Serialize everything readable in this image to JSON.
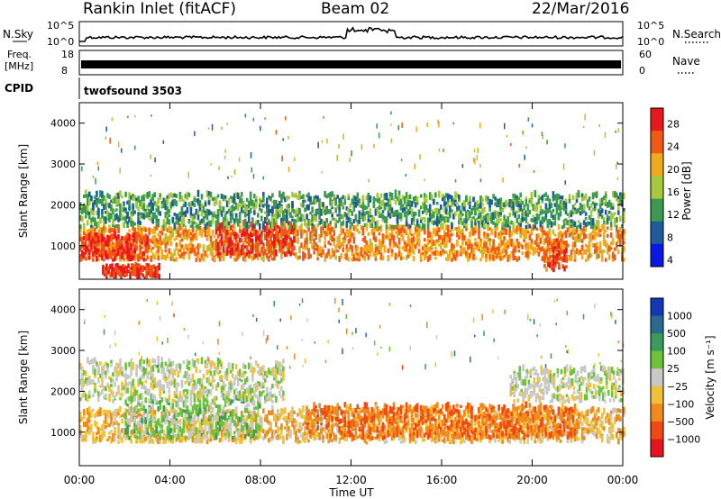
{
  "header": {
    "station": "Rankin Inlet (fitACF)",
    "beam": "Beam 02",
    "date": "22/Mar/2016"
  },
  "panels": {
    "nsky_label": "N.Sky",
    "nsearch_label": "N.Search",
    "freq_label": "Freq.",
    "freq_unit": "[MHz]",
    "nave_label": "Nave",
    "cpid_label": "CPID",
    "cpid_value": "twofsound 3503",
    "noise_left_ticks": [
      "10^5",
      "10^0"
    ],
    "noise_right_ticks": [
      "10^5",
      "10^0"
    ],
    "freq_left_ticks": [
      "18",
      "8"
    ],
    "freq_right_ticks": [
      "60",
      "0"
    ]
  },
  "colorbars": {
    "power": {
      "label": "Power [dB]",
      "ticks": [
        "28",
        "24",
        "20",
        "16",
        "12",
        "8",
        "4"
      ],
      "colors": [
        "#e8181c",
        "#f05a14",
        "#f0aa1c",
        "#a8c83c",
        "#3c9a50",
        "#1f5a9a",
        "#0a18e6"
      ]
    },
    "velocity": {
      "label": "Velocity [m s⁻¹]",
      "ticks": [
        "1000",
        "500",
        "100",
        "25",
        "−25",
        "−100",
        "−500",
        "−1000"
      ],
      "colors": [
        "#1438b4",
        "#2a6a8e",
        "#3c9a5a",
        "#6cc23a",
        "#c8c8c8",
        "#f0c23a",
        "#f08a1c",
        "#f04a14",
        "#e8141c"
      ]
    }
  },
  "axes": {
    "ylabel": "Slant Range [km]",
    "xlabel": "Time UT",
    "xticks": [
      "00:00",
      "04:00",
      "08:00",
      "12:00",
      "16:00",
      "20:00",
      "00:00"
    ],
    "yticks": [
      "1000",
      "2000",
      "3000",
      "4000"
    ]
  },
  "chart_data": [
    {
      "type": "heatmap",
      "title": "Power",
      "xlabel": "Time UT",
      "ylabel": "Slant Range [km]",
      "xlim_hours": [
        0,
        24
      ],
      "ylim_km": [
        180,
        4500
      ],
      "colorbar_range_db": [
        0,
        30
      ],
      "bands": [
        {
          "t_start": 0.0,
          "t_end": 24.0,
          "r_center": 1000,
          "r_width": 400,
          "power_db": 22
        },
        {
          "t_start": 0.0,
          "t_end": 3.0,
          "r_center": 900,
          "r_width": 300,
          "power_db": 28
        },
        {
          "t_start": 6.0,
          "t_end": 9.5,
          "r_center": 1100,
          "r_width": 400,
          "power_db": 28
        },
        {
          "t_start": 20.5,
          "t_end": 21.5,
          "r_center": 700,
          "r_width": 350,
          "power_db": 26
        },
        {
          "t_start": 0.0,
          "t_end": 24.0,
          "r_center": 1800,
          "r_width": 400,
          "power_db": 10
        },
        {
          "t_start": 1.0,
          "t_end": 3.5,
          "r_center": 300,
          "r_width": 150,
          "power_db": 28
        }
      ]
    },
    {
      "type": "heatmap",
      "title": "Velocity",
      "xlabel": "Time UT",
      "ylabel": "Slant Range [km]",
      "xlim_hours": [
        0,
        24
      ],
      "ylim_km": [
        180,
        4500
      ],
      "colorbar_range_ms": [
        -1000,
        1000
      ],
      "bands": [
        {
          "t_start": 0.0,
          "t_end": 24.0,
          "r_center": 1100,
          "r_width": 400,
          "velocity_ms": -300
        },
        {
          "t_start": 2.0,
          "t_end": 8.0,
          "r_center": 1300,
          "r_width": 500,
          "velocity_ms": 200
        },
        {
          "t_start": 0.0,
          "t_end": 9.0,
          "r_center": 2200,
          "r_width": 500,
          "velocity_ms": 0
        },
        {
          "t_start": 19.0,
          "t_end": 24.0,
          "r_center": 2100,
          "r_width": 400,
          "velocity_ms": 0
        },
        {
          "t_start": 10.0,
          "t_end": 22.0,
          "r_center": 1200,
          "r_width": 400,
          "velocity_ms": -600
        }
      ]
    }
  ]
}
